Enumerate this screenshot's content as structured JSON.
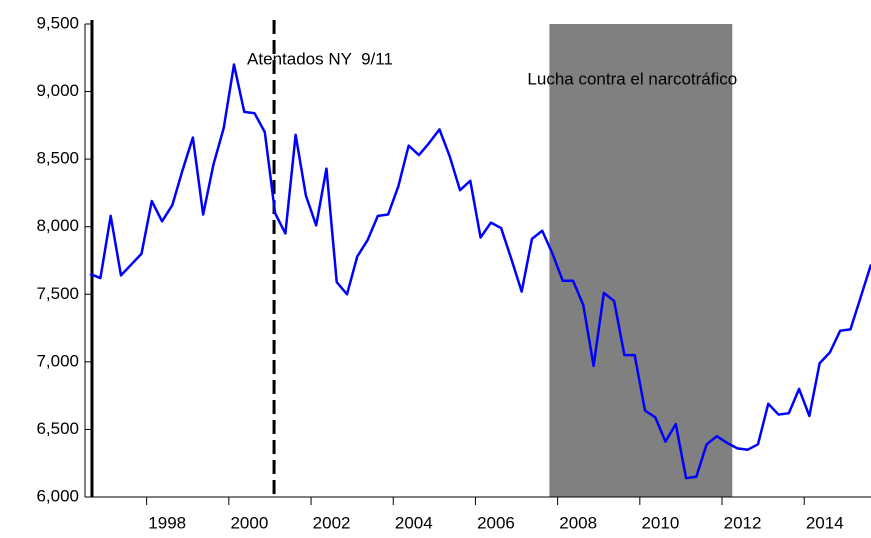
{
  "chart_data": {
    "type": "line",
    "x": [
      1996.625,
      1996.875,
      1997.125,
      1997.375,
      1997.625,
      1997.875,
      1998.125,
      1998.375,
      1998.625,
      1998.875,
      1999.125,
      1999.375,
      1999.625,
      1999.875,
      2000.125,
      2000.375,
      2000.625,
      2000.875,
      2001.125,
      2001.375,
      2001.625,
      2001.875,
      2002.125,
      2002.375,
      2002.625,
      2002.875,
      2003.125,
      2003.375,
      2003.625,
      2003.875,
      2004.125,
      2004.375,
      2004.625,
      2004.875,
      2005.125,
      2005.375,
      2005.625,
      2005.875,
      2006.125,
      2006.375,
      2006.625,
      2006.875,
      2007.125,
      2007.375,
      2007.625,
      2007.875,
      2008.125,
      2008.375,
      2008.625,
      2008.875,
      2009.125,
      2009.375,
      2009.625,
      2009.875,
      2010.125,
      2010.375,
      2010.625,
      2010.875,
      2011.125,
      2011.375,
      2011.625,
      2011.875,
      2012.125,
      2012.375,
      2012.625,
      2012.875,
      2013.125,
      2013.375,
      2013.625,
      2013.875,
      2014.125,
      2014.375,
      2014.625,
      2014.875,
      2015.125,
      2015.375,
      2015.625
    ],
    "series": [
      {
        "color": "#0000ff",
        "values": [
          7650,
          7620,
          8080,
          7640,
          7720,
          7800,
          8190,
          8040,
          8160,
          8420,
          8660,
          8090,
          8460,
          8730,
          9200,
          8850,
          8840,
          8700,
          8100,
          7950,
          8680,
          8230,
          8010,
          8430,
          7590,
          7500,
          7780,
          7900,
          8080,
          8090,
          8300,
          8600,
          8530,
          8620,
          8720,
          8520,
          8270,
          8340,
          7920,
          8030,
          7990,
          7760,
          7520,
          7910,
          7970,
          7800,
          7600,
          7600,
          7420,
          6970,
          7510,
          7450,
          7050,
          7050,
          6640,
          6590,
          6410,
          6540,
          6140,
          6150,
          6390,
          6450,
          6400,
          6360,
          6350,
          6390,
          6690,
          6610,
          6620,
          6800,
          6600,
          6990,
          7070,
          7230,
          7240,
          7480,
          7720
        ]
      }
    ],
    "xlim": [
      1996.5,
      2015.625
    ],
    "xticks": [
      1998,
      2000,
      2002,
      2004,
      2006,
      2008,
      2010,
      2012,
      2014
    ],
    "ylim": [
      6000,
      9500
    ],
    "yticks": [
      {
        "value": 6000,
        "label": "6,000"
      },
      {
        "value": 6500,
        "label": "6,500"
      },
      {
        "value": 7000,
        "label": "7,000"
      },
      {
        "value": 7500,
        "label": "7,500"
      },
      {
        "value": 8000,
        "label": "8,000"
      },
      {
        "value": 8500,
        "label": "8,500"
      },
      {
        "value": 9000,
        "label": "9,000"
      },
      {
        "value": 9500,
        "label": "9,500"
      }
    ],
    "shaded": {
      "range": [
        2007.8,
        2012.25
      ],
      "color": "#808080",
      "label": "Lucha contra el narcotráfico"
    },
    "vlines": [
      {
        "x": 1996.67,
        "style": "solid"
      },
      {
        "x": 2001.1,
        "style": "dashed",
        "label": "Atentados NY  9/11"
      }
    ]
  }
}
